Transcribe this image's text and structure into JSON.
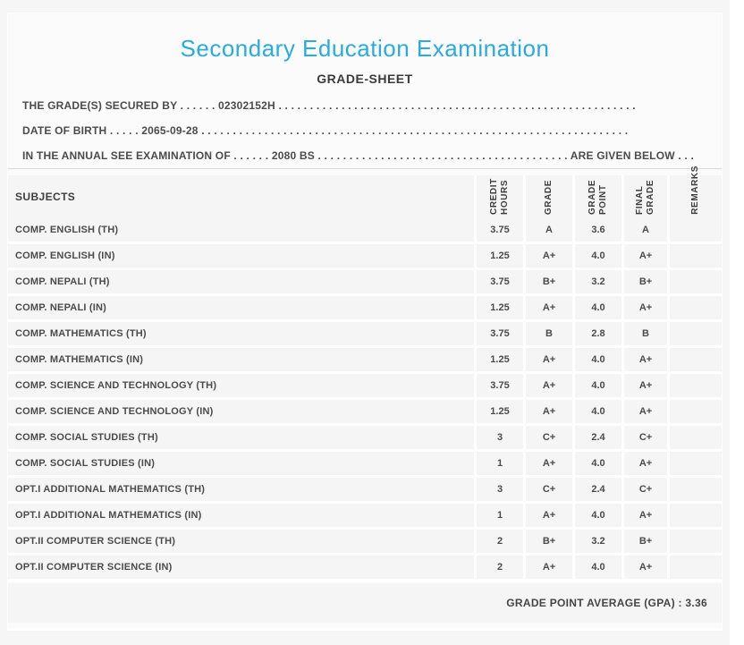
{
  "header": {
    "title": "Secondary Education Examination",
    "subtitle": "GRADE-SHEET"
  },
  "info_lines": [
    {
      "segments": [
        {
          "text": "THE GRADE(S) SECURED BY"
        },
        {
          "dots": 6
        },
        {
          "text": "02302152H"
        },
        {
          "dots": 57
        }
      ]
    },
    {
      "segments": [
        {
          "text": "DATE OF BIRTH"
        },
        {
          "dots": 5
        },
        {
          "text": "2065-09-28"
        },
        {
          "dots": 68
        }
      ]
    },
    {
      "segments": [
        {
          "text": "IN THE ANNUAL SEE EXAMINATION OF"
        },
        {
          "dots": 6
        },
        {
          "text": "2080 BS"
        },
        {
          "dots": 40
        },
        {
          "text": "ARE GIVEN BELOW"
        },
        {
          "dots": 3
        }
      ]
    }
  ],
  "table": {
    "subject_column_header": "SUBJECTS",
    "value_column_headers": [
      "CREDIT HOURS",
      "GRADE",
      "GRADE POINT",
      "FINAL GRADE",
      "REMARKS"
    ],
    "rows": [
      {
        "subject": "COMP. ENGLISH (TH)",
        "credit_hours": "3.75",
        "grade": "A",
        "grade_point": "3.6",
        "final_grade": "A",
        "remarks": ""
      },
      {
        "subject": "COMP. ENGLISH (IN)",
        "credit_hours": "1.25",
        "grade": "A+",
        "grade_point": "4.0",
        "final_grade": "A+",
        "remarks": ""
      },
      {
        "subject": "COMP. NEPALI (TH)",
        "credit_hours": "3.75",
        "grade": "B+",
        "grade_point": "3.2",
        "final_grade": "B+",
        "remarks": ""
      },
      {
        "subject": "COMP. NEPALI (IN)",
        "credit_hours": "1.25",
        "grade": "A+",
        "grade_point": "4.0",
        "final_grade": "A+",
        "remarks": ""
      },
      {
        "subject": "COMP. MATHEMATICS (TH)",
        "credit_hours": "3.75",
        "grade": "B",
        "grade_point": "2.8",
        "final_grade": "B",
        "remarks": ""
      },
      {
        "subject": "COMP. MATHEMATICS (IN)",
        "credit_hours": "1.25",
        "grade": "A+",
        "grade_point": "4.0",
        "final_grade": "A+",
        "remarks": ""
      },
      {
        "subject": "COMP. SCIENCE AND TECHNOLOGY (TH)",
        "credit_hours": "3.75",
        "grade": "A+",
        "grade_point": "4.0",
        "final_grade": "A+",
        "remarks": ""
      },
      {
        "subject": "COMP. SCIENCE AND TECHNOLOGY (IN)",
        "credit_hours": "1.25",
        "grade": "A+",
        "grade_point": "4.0",
        "final_grade": "A+",
        "remarks": ""
      },
      {
        "subject": "COMP. SOCIAL STUDIES (TH)",
        "credit_hours": "3",
        "grade": "C+",
        "grade_point": "2.4",
        "final_grade": "C+",
        "remarks": ""
      },
      {
        "subject": "COMP. SOCIAL STUDIES (IN)",
        "credit_hours": "1",
        "grade": "A+",
        "grade_point": "4.0",
        "final_grade": "A+",
        "remarks": ""
      },
      {
        "subject": "OPT.I ADDITIONAL MATHEMATICS (TH)",
        "credit_hours": "3",
        "grade": "C+",
        "grade_point": "2.4",
        "final_grade": "C+",
        "remarks": ""
      },
      {
        "subject": "OPT.I ADDITIONAL MATHEMATICS (IN)",
        "credit_hours": "1",
        "grade": "A+",
        "grade_point": "4.0",
        "final_grade": "A+",
        "remarks": ""
      },
      {
        "subject": "OPT.II COMPUTER SCIENCE (TH)",
        "credit_hours": "2",
        "grade": "B+",
        "grade_point": "3.2",
        "final_grade": "B+",
        "remarks": ""
      },
      {
        "subject": "OPT.II COMPUTER SCIENCE (IN)",
        "credit_hours": "2",
        "grade": "A+",
        "grade_point": "4.0",
        "final_grade": "A+",
        "remarks": ""
      }
    ],
    "footer": {
      "gpa_text": "GRADE POINT AVERAGE (GPA) : 3.36"
    }
  },
  "colors": {
    "title_accent": "#29abe2",
    "text": "#4b4b4b",
    "row_bg": "#f5f5f5",
    "card_bg": "#fbfbfb",
    "page_bg": "#f6f6f6",
    "separator": "#ffffff",
    "rule": "#d8d8d8"
  }
}
